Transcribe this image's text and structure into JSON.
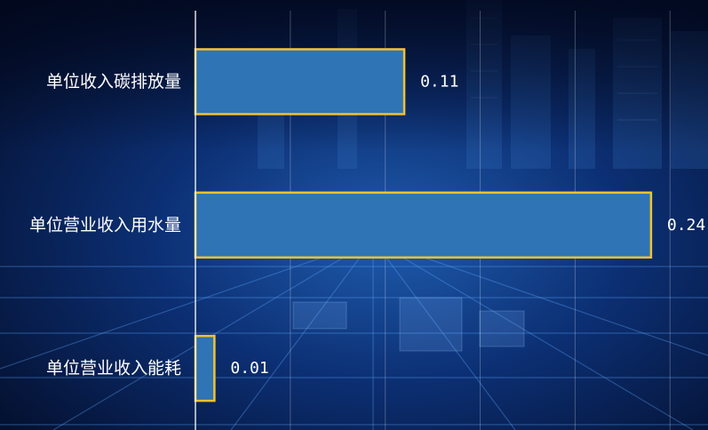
{
  "colors": {
    "bar_fill": "#2f74b5",
    "bar_stroke": "#f2c230",
    "axis_line": "#ffffff",
    "text": "#ffffff"
  },
  "chart_data": {
    "type": "bar",
    "orientation": "horizontal",
    "categories": [
      "单位收入碳排放量",
      "单位营业收入用水量",
      "单位营业收入能耗"
    ],
    "values": [
      0.11,
      0.24,
      0.01
    ],
    "data_labels": [
      "0.11",
      "0.24",
      "0.01"
    ],
    "xlim": [
      0,
      0.27
    ],
    "grid": true,
    "legend": "none"
  }
}
